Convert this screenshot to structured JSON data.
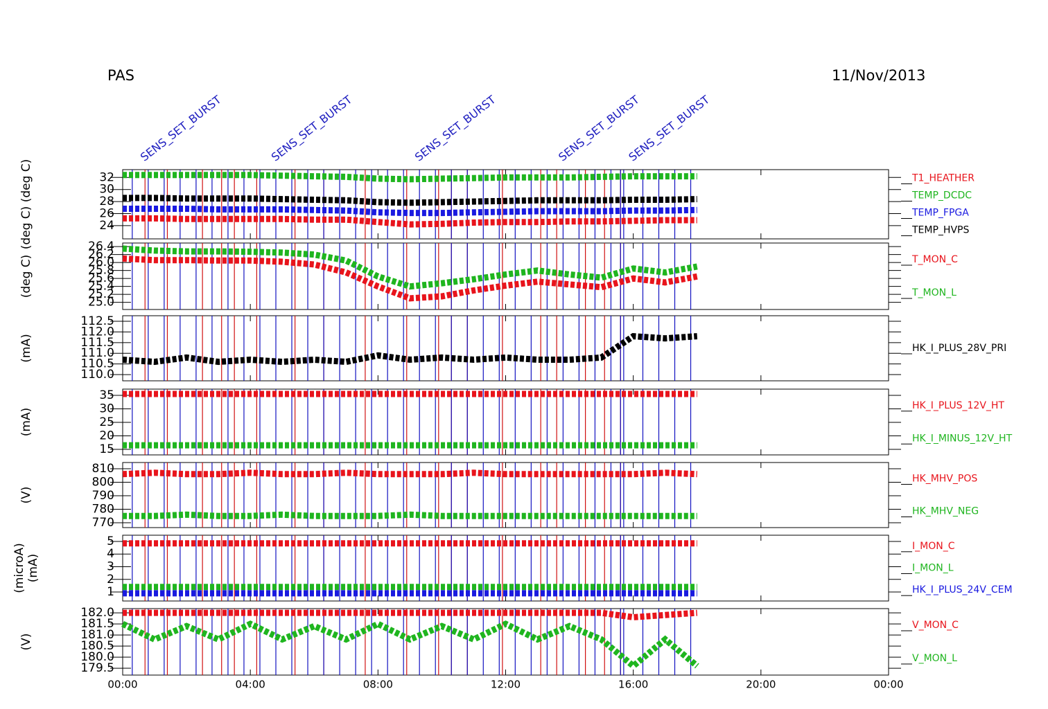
{
  "title": "PAS",
  "date": "11/Nov/2013",
  "event_lines": {
    "red": [
      0.7,
      1.4,
      2.5,
      3.1,
      3.5,
      4.2,
      5.4,
      6.3,
      7.6,
      8.9,
      9.9,
      10.3,
      10.8,
      11.9,
      13.1,
      13.6,
      14.5,
      15.1,
      15.6
    ],
    "blue": [
      0.3,
      0.8,
      1.3,
      1.8,
      2.3,
      2.8,
      3.3,
      3.8,
      4.3,
      4.8,
      5.3,
      5.8,
      6.3,
      6.8,
      7.3,
      7.8,
      8.3,
      8.8,
      9.3,
      9.8,
      10.3,
      10.8,
      11.3,
      11.8,
      12.3,
      12.8,
      13.3,
      13.8,
      14.3,
      14.8,
      15.3,
      15.6,
      15.7,
      16.3,
      16.8,
      17.3,
      17.8
    ]
  },
  "annotations": [
    {
      "text": "SENS_SET_BURST",
      "time": 0.4,
      "color": "#2020c0"
    },
    {
      "text": "SENS_SET_BURST",
      "time": 4.5,
      "color": "#2020c0"
    },
    {
      "text": "SENS_SET_BURST",
      "time": 9.0,
      "color": "#2020c0"
    },
    {
      "text": "SENS_SET_BURST",
      "time": 13.5,
      "color": "#2020c0"
    },
    {
      "text": "SENS_SET_BURST",
      "time": 15.7,
      "color": "#2020c0"
    }
  ],
  "chart_data": [
    {
      "type": "line",
      "ylabel": "(deg C)  (deg C)",
      "xlim": [
        0,
        24
      ],
      "ylim": [
        21.8,
        33.3
      ],
      "yticks": [
        24,
        26,
        28,
        30,
        32
      ],
      "x": [
        0,
        1,
        2,
        3,
        4,
        5,
        6,
        7,
        8,
        9,
        10,
        11,
        12,
        13,
        14,
        15,
        16,
        17,
        18
      ],
      "series": [
        {
          "name": "T1_HEATHER",
          "color": "#e8141c",
          "values": [
            25.2,
            25.2,
            25.1,
            25.1,
            25.1,
            25.1,
            25.0,
            25.0,
            24.6,
            24.2,
            24.3,
            24.5,
            24.6,
            24.6,
            24.7,
            24.7,
            24.8,
            24.9,
            24.9
          ]
        },
        {
          "name": "TEMP_DCDC",
          "color": "#1fb51f",
          "values": [
            32.4,
            32.4,
            32.4,
            32.4,
            32.4,
            32.3,
            32.2,
            32.1,
            31.8,
            31.7,
            31.8,
            31.9,
            32.0,
            32.0,
            32.0,
            32.1,
            32.2,
            32.2,
            32.2
          ]
        },
        {
          "name": "TEMP_FPGA",
          "color": "#1a1ae0",
          "values": [
            26.8,
            26.8,
            26.8,
            26.7,
            26.7,
            26.7,
            26.6,
            26.5,
            26.2,
            26.1,
            26.1,
            26.2,
            26.3,
            26.4,
            26.4,
            26.4,
            26.5,
            26.5,
            26.6
          ]
        },
        {
          "name": "TEMP_HVPS",
          "color": "#000000",
          "values": [
            28.6,
            28.6,
            28.5,
            28.5,
            28.5,
            28.4,
            28.3,
            28.2,
            27.9,
            27.8,
            27.9,
            28.0,
            28.1,
            28.2,
            28.2,
            28.2,
            28.3,
            28.3,
            28.4
          ]
        }
      ]
    },
    {
      "type": "line",
      "ylabel": "(deg C)",
      "xlim": [
        0,
        24
      ],
      "ylim": [
        24.82,
        26.49
      ],
      "yticks": [
        {
          "value": 25.0,
          "label": "25.0"
        },
        25.2,
        25.4,
        25.6,
        25.8,
        {
          "value": 26.0,
          "label": "26.0"
        },
        26.2,
        26.4
      ],
      "x": [
        0,
        1,
        2,
        3,
        4,
        5,
        6,
        7,
        8,
        9,
        10,
        11,
        12,
        13,
        14,
        15,
        16,
        17,
        18
      ],
      "series": [
        {
          "name": "T_MON_C",
          "color": "#e8141c",
          "values": [
            26.1,
            26.06,
            26.06,
            26.05,
            26.05,
            26.02,
            25.95,
            25.75,
            25.4,
            25.1,
            25.15,
            25.3,
            25.42,
            25.52,
            25.45,
            25.38,
            25.6,
            25.5,
            25.65
          ]
        },
        {
          "name": "T_MON_L",
          "color": "#1fb51f",
          "values": [
            26.35,
            26.3,
            26.28,
            26.28,
            26.27,
            26.25,
            26.2,
            26.05,
            25.65,
            25.4,
            25.48,
            25.58,
            25.7,
            25.8,
            25.7,
            25.62,
            25.85,
            25.75,
            25.9
          ]
        }
      ]
    },
    {
      "type": "line",
      "ylabel": "(mA)",
      "xlim": [
        0,
        24
      ],
      "ylim": [
        109.71,
        112.76
      ],
      "yticks": [
        {
          "value": 110.0,
          "label": "110.0"
        },
        110.5,
        {
          "value": 111.0,
          "label": "111.0"
        },
        111.5,
        {
          "value": 112.0,
          "label": "112.0"
        },
        112.5
      ],
      "x": [
        0,
        1,
        2,
        3,
        4,
        5,
        6,
        7,
        8,
        9,
        10,
        11,
        12,
        13,
        14,
        15,
        16,
        17,
        18
      ],
      "series": [
        {
          "name": "HK_I_PLUS_28V_PRI",
          "color": "#000000",
          "values": [
            110.7,
            110.6,
            110.8,
            110.6,
            110.7,
            110.6,
            110.7,
            110.6,
            110.9,
            110.7,
            110.8,
            110.7,
            110.8,
            110.7,
            110.7,
            110.8,
            111.8,
            111.7,
            111.8
          ]
        }
      ]
    },
    {
      "type": "line",
      "ylabel": "(mA)",
      "xlim": [
        0,
        24
      ],
      "ylim": [
        12.95,
        37.3
      ],
      "yticks": [
        15,
        20,
        25,
        30,
        35
      ],
      "x": [
        0,
        1,
        2,
        3,
        4,
        5,
        6,
        7,
        8,
        9,
        10,
        11,
        12,
        13,
        14,
        15,
        16,
        17,
        18
      ],
      "series": [
        {
          "name": "HK_I_PLUS_12V_HT",
          "color": "#e8141c",
          "values": [
            35.5,
            35.5,
            35.5,
            35.5,
            35.5,
            35.5,
            35.5,
            35.5,
            35.5,
            35.5,
            35.5,
            35.5,
            35.5,
            35.5,
            35.5,
            35.5,
            35.5,
            35.5,
            35.5
          ]
        },
        {
          "name": "HK_I_MINUS_12V_HT",
          "color": "#1fb51f",
          "values": [
            16.5,
            16.5,
            16.5,
            16.5,
            16.5,
            16.5,
            16.5,
            16.5,
            16.5,
            16.5,
            16.5,
            16.5,
            16.5,
            16.5,
            16.5,
            16.5,
            16.5,
            16.5,
            16.5
          ]
        }
      ]
    },
    {
      "type": "line",
      "ylabel": "(V)",
      "xlim": [
        0,
        24
      ],
      "ylim": [
        766.4,
        814.6
      ],
      "yticks": [
        770,
        780,
        790,
        800,
        810
      ],
      "x": [
        0,
        1,
        2,
        3,
        4,
        5,
        6,
        7,
        8,
        9,
        10,
        11,
        12,
        13,
        14,
        15,
        16,
        17,
        18
      ],
      "series": [
        {
          "name": "HK_MHV_POS",
          "color": "#e8141c",
          "values": [
            806,
            807,
            806,
            806,
            807,
            806,
            806,
            807,
            806,
            806,
            806,
            807,
            806,
            806,
            806,
            806,
            806,
            807,
            806
          ]
        },
        {
          "name": "HK_MHV_NEG",
          "color": "#1fb51f",
          "values": [
            775,
            775,
            776,
            775,
            775,
            776,
            775,
            775,
            775,
            776,
            775,
            775,
            775,
            775,
            775,
            775,
            775,
            775,
            775
          ]
        }
      ]
    },
    {
      "type": "line",
      "ylabel": [
        "(microA)",
        "(mA)"
      ],
      "xlim": [
        0,
        24
      ],
      "ylim": [
        0.29,
        5.49
      ],
      "yticks": [
        1,
        2,
        3,
        4,
        5
      ],
      "x": [
        0,
        1,
        2,
        3,
        4,
        5,
        6,
        7,
        8,
        9,
        10,
        11,
        12,
        13,
        14,
        15,
        16,
        17,
        18
      ],
      "series": [
        {
          "name": "I_MON_C",
          "color": "#e8141c",
          "values": [
            4.85,
            4.85,
            4.85,
            4.85,
            4.85,
            4.85,
            4.85,
            4.85,
            4.85,
            4.85,
            4.85,
            4.85,
            4.85,
            4.85,
            4.85,
            4.85,
            4.85,
            4.85,
            4.85
          ]
        },
        {
          "name": "I_MON_L",
          "color": "#1fb51f",
          "values": [
            1.4,
            1.4,
            1.4,
            1.4,
            1.4,
            1.4,
            1.4,
            1.4,
            1.4,
            1.4,
            1.4,
            1.4,
            1.4,
            1.4,
            1.4,
            1.4,
            1.4,
            1.4,
            1.4
          ]
        },
        {
          "name": "HK_I_PLUS_24V_CEM",
          "color": "#1a1ae0",
          "values": [
            0.9,
            0.9,
            0.9,
            0.9,
            0.9,
            0.9,
            0.9,
            0.9,
            0.9,
            0.9,
            0.9,
            0.9,
            0.9,
            0.9,
            0.9,
            0.9,
            0.9,
            0.9,
            0.9
          ]
        }
      ]
    },
    {
      "type": "line",
      "ylabel": "(V)",
      "xlim": [
        0,
        24
      ],
      "ylim": [
        179.19,
        182.19
      ],
      "yticks": [
        179.5,
        {
          "value": 180.0,
          "label": "180.0"
        },
        180.5,
        {
          "value": 181.0,
          "label": "181.0"
        },
        181.5,
        {
          "value": 182.0,
          "label": "182.0"
        }
      ],
      "xticks": [
        {
          "value": 0,
          "label": "00:00"
        },
        {
          "value": 4,
          "label": "04:00"
        },
        {
          "value": 8,
          "label": "08:00"
        },
        {
          "value": 12,
          "label": "12:00"
        },
        {
          "value": 16,
          "label": "16:00"
        },
        {
          "value": 20,
          "label": "20:00"
        },
        {
          "value": 24,
          "label": "00:00"
        }
      ],
      "x": [
        0,
        1,
        2,
        3,
        4,
        5,
        6,
        7,
        8,
        9,
        10,
        11,
        12,
        13,
        14,
        15,
        16,
        17,
        18
      ],
      "series": [
        {
          "name": "V_MON_C",
          "color": "#e8141c",
          "values": [
            182.0,
            182.0,
            182.0,
            182.0,
            182.0,
            182.0,
            182.0,
            182.0,
            182.0,
            182.0,
            182.0,
            182.0,
            182.0,
            182.0,
            182.0,
            182.0,
            181.8,
            181.9,
            182.0
          ]
        },
        {
          "name": "V_MON_L",
          "color": "#1fb51f",
          "values": [
            181.5,
            180.8,
            181.4,
            180.8,
            181.5,
            180.8,
            181.4,
            180.8,
            181.5,
            180.8,
            181.4,
            180.8,
            181.5,
            180.8,
            181.4,
            180.8,
            179.6,
            180.8,
            179.6
          ]
        }
      ]
    }
  ]
}
